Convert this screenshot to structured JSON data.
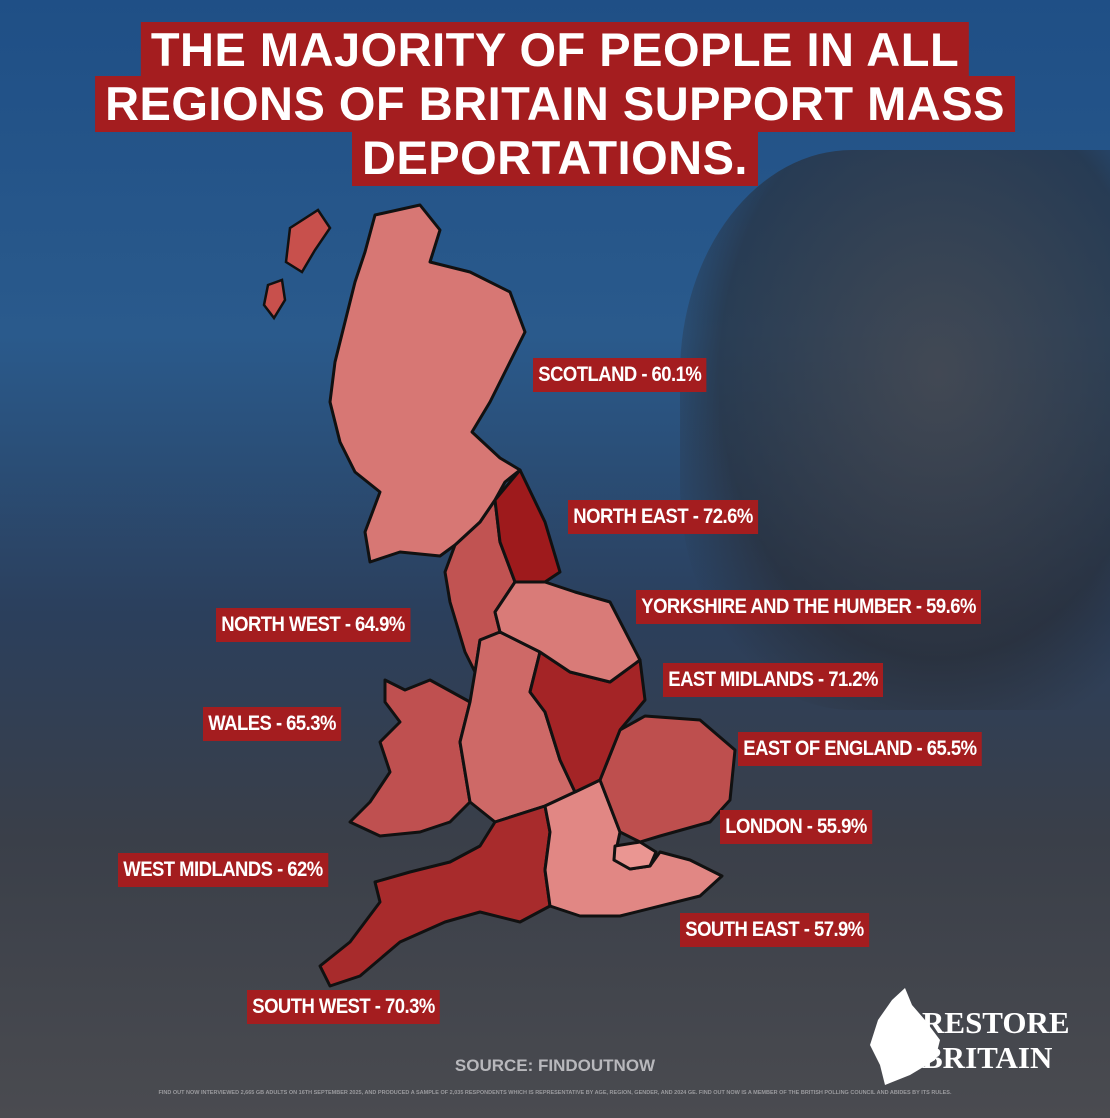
{
  "title_lines": [
    "THE MAJORITY OF PEOPLE IN ALL",
    "REGIONS OF BRITAIN SUPPORT MASS",
    "DEPORTATIONS."
  ],
  "regions": [
    {
      "label": "SCOTLAND - 60.1%",
      "value": 60.1
    },
    {
      "label": "NORTH EAST - 72.6%",
      "value": 72.6
    },
    {
      "label": "YORKSHIRE AND THE HUMBER - 59.6%",
      "value": 59.6
    },
    {
      "label": "EAST MIDLANDS - 71.2%",
      "value": 71.2
    },
    {
      "label": "EAST OF ENGLAND - 65.5%",
      "value": 65.5
    },
    {
      "label": "LONDON - 55.9%",
      "value": 55.9
    },
    {
      "label": "SOUTH EAST - 57.9%",
      "value": 57.9
    },
    {
      "label": "SOUTH WEST - 70.3%",
      "value": 70.3
    },
    {
      "label": "WEST MIDLANDS - 62%",
      "value": 62
    },
    {
      "label": "WALES - 65.3%",
      "value": 65.3
    },
    {
      "label": "NORTH WEST - 64.9%",
      "value": 64.9
    }
  ],
  "source": "SOURCE: FINDOUTNOW",
  "footnote": "FIND OUT NOW INTERVIEWED 2,665 GB ADULTS ON 16TH SEPTEMBER 2025, AND PRODUCED A SAMPLE OF 2,035 RESPONDENTS WHICH IS REPRESENTATIVE BY AGE, REGION, GENDER, AND 2024 GE. FIND OUT NOW IS A MEMBER OF THE BRITISH POLLING COUNCIL AND ABIDES BY ITS RULES.",
  "logo": [
    "RESTORE",
    "BRITAIN"
  ]
}
